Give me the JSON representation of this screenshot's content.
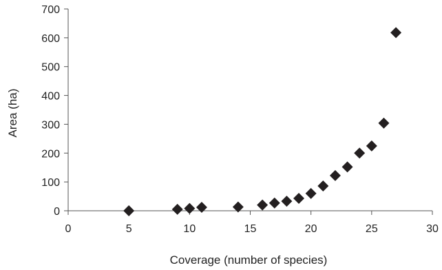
{
  "chart_data": {
    "type": "scatter",
    "title": "",
    "xlabel": "Coverage (number of species)",
    "ylabel": "Area (ha)",
    "xlim": [
      0,
      30
    ],
    "ylim": [
      0,
      700
    ],
    "xticks": [
      0,
      5,
      10,
      15,
      20,
      25,
      30
    ],
    "yticks": [
      0,
      100,
      200,
      300,
      400,
      500,
      600,
      700
    ],
    "grid": false,
    "legend": "none",
    "marker": "diamond",
    "marker_color": "#231f20",
    "series": [
      {
        "points": [
          {
            "x": 5,
            "y": 0
          },
          {
            "x": 9,
            "y": 5
          },
          {
            "x": 10,
            "y": 8
          },
          {
            "x": 11,
            "y": 12
          },
          {
            "x": 14,
            "y": 13
          },
          {
            "x": 16,
            "y": 20
          },
          {
            "x": 17,
            "y": 27
          },
          {
            "x": 18,
            "y": 33
          },
          {
            "x": 19,
            "y": 43
          },
          {
            "x": 20,
            "y": 60
          },
          {
            "x": 21,
            "y": 86
          },
          {
            "x": 22,
            "y": 122
          },
          {
            "x": 23,
            "y": 152
          },
          {
            "x": 24,
            "y": 200
          },
          {
            "x": 25,
            "y": 225
          },
          {
            "x": 26,
            "y": 304
          },
          {
            "x": 27,
            "y": 618
          }
        ]
      }
    ]
  }
}
